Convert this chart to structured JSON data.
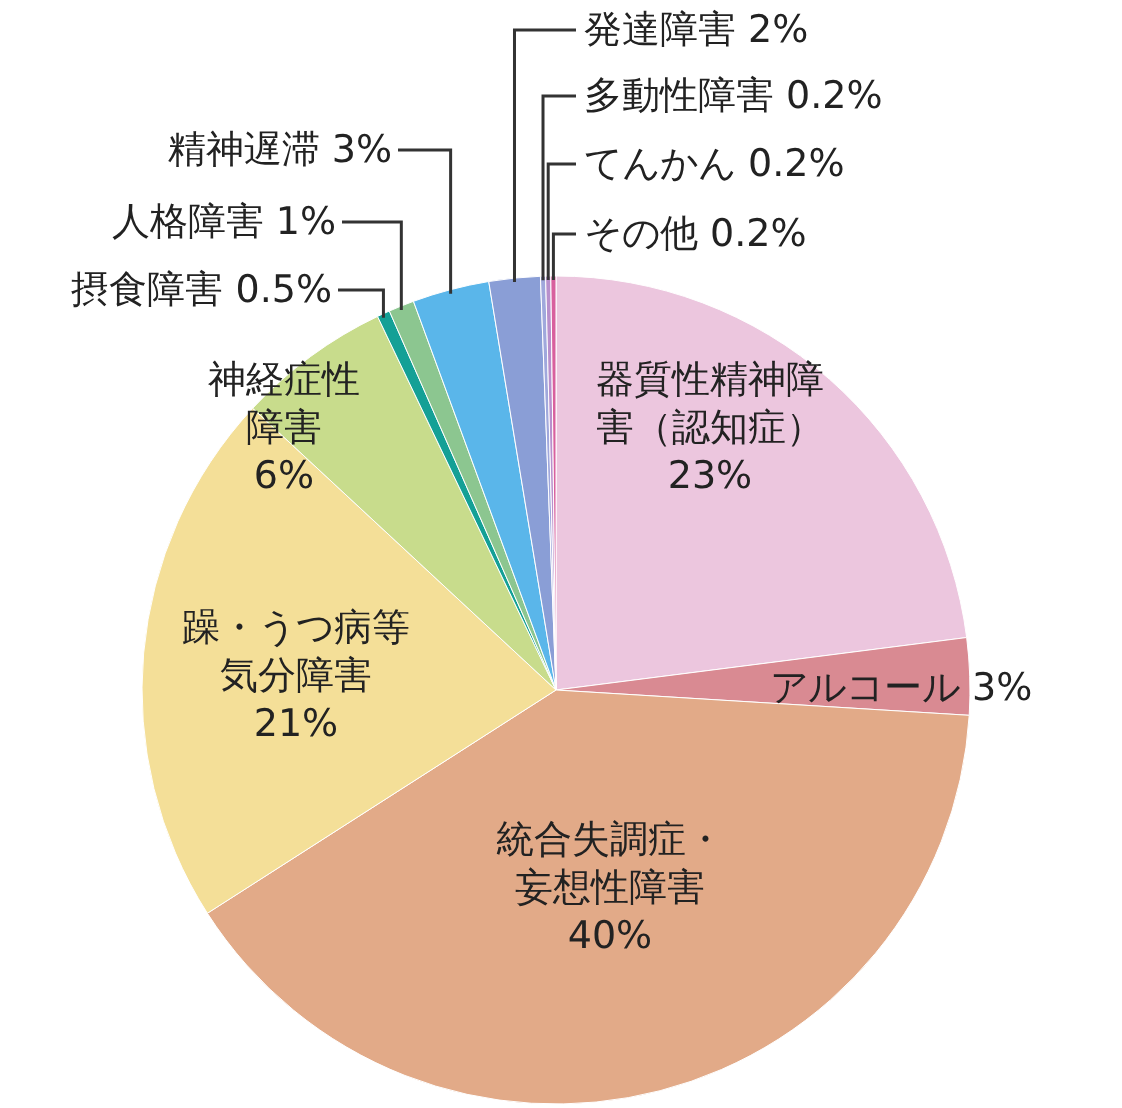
{
  "chart_data": {
    "type": "pie",
    "categories": [
      "器質性精神障害（認知症）",
      "アルコール",
      "統合失調症・妄想性障害",
      "躁・うつ病等気分障害",
      "神経症性障害",
      "摂食障害",
      "人格障害",
      "精神遅滞",
      "発達障害",
      "多動性障害",
      "てんかん",
      "その他"
    ],
    "values": [
      23,
      3,
      40,
      21,
      6,
      0.5,
      1,
      3,
      2,
      0.2,
      0.2,
      0.2
    ],
    "value_labels": [
      "23%",
      "3%",
      "40%",
      "21%",
      "6%",
      "0.5%",
      "1%",
      "3%",
      "2%",
      "0.2%",
      "0.2%",
      "0.2%"
    ],
    "colors": [
      "#ecc6de",
      "#d98a92",
      "#e2aa88",
      "#f4df98",
      "#c8dc8c",
      "#14a096",
      "#8cc690",
      "#5ab6ea",
      "#8a9ed6",
      "#a0a8dc",
      "#b890cc",
      "#d8609e"
    ]
  }
}
